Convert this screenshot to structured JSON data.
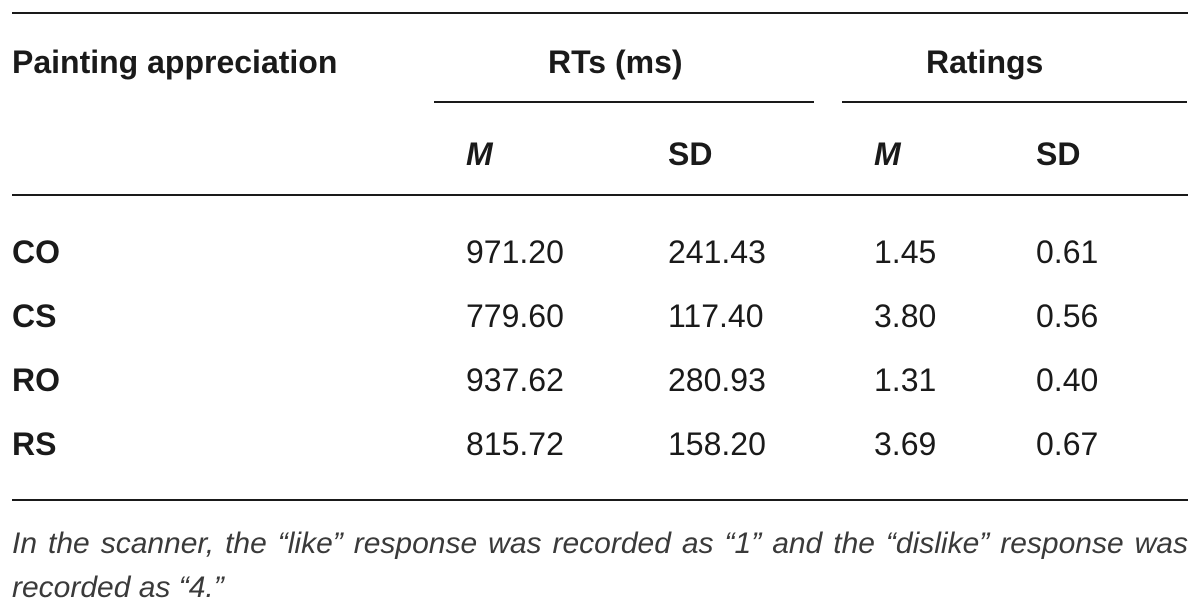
{
  "table": {
    "header": {
      "row_label": "Painting appreciation",
      "group1": "RTs (ms)",
      "group2": "Ratings",
      "sub": [
        "M",
        "SD",
        "M",
        "SD"
      ]
    },
    "rows": [
      {
        "label": "CO",
        "values": [
          "971.20",
          "241.43",
          "1.45",
          "0.61"
        ]
      },
      {
        "label": "CS",
        "values": [
          "779.60",
          "117.40",
          "3.80",
          "0.56"
        ]
      },
      {
        "label": "RO",
        "values": [
          "937.62",
          "280.93",
          "1.31",
          "0.40"
        ]
      },
      {
        "label": "RS",
        "values": [
          "815.72",
          "158.20",
          "3.69",
          "0.67"
        ]
      }
    ],
    "note": "In the scanner, the “like” response was recorded as “1” and the “dislike” response was recorded as “4.”"
  }
}
